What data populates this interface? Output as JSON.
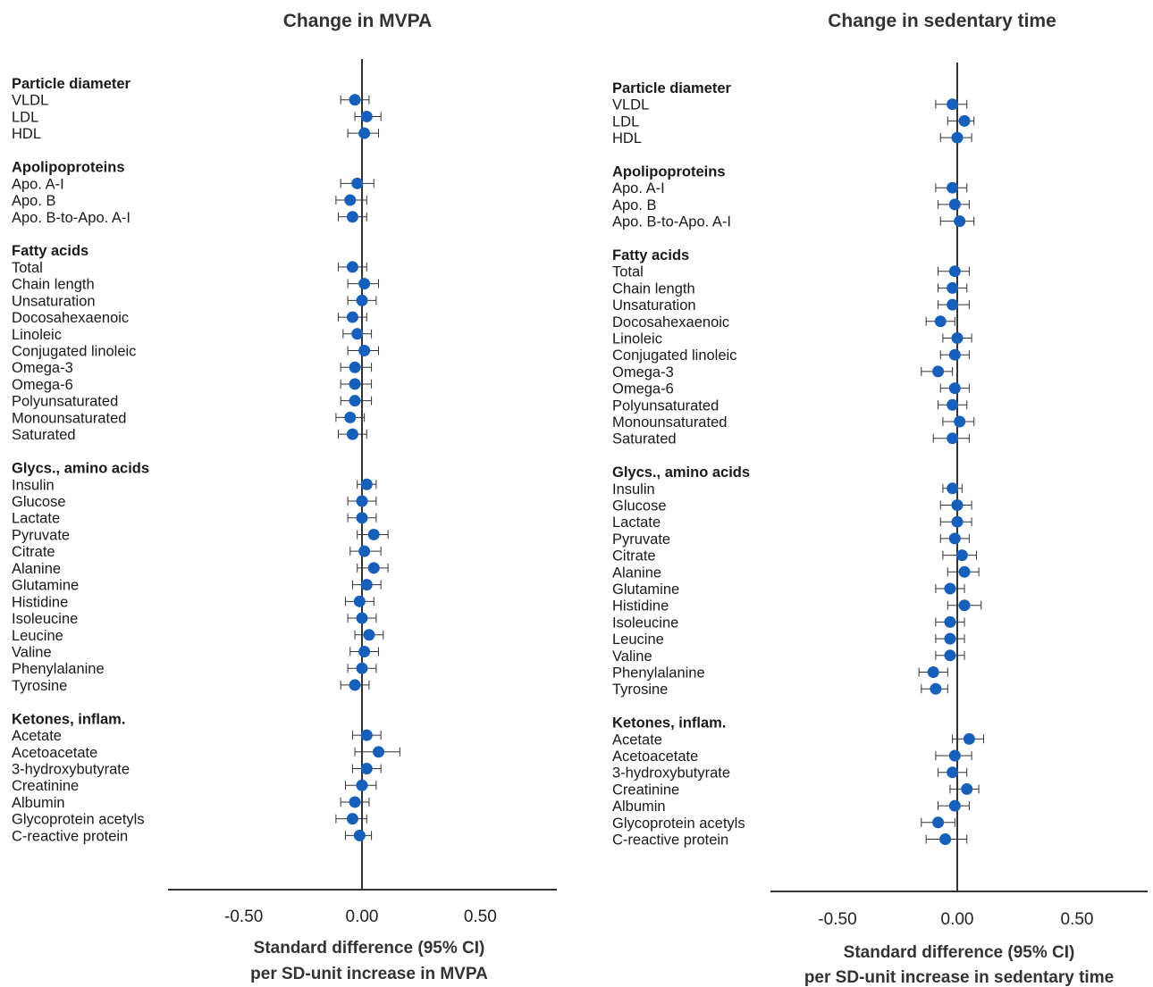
{
  "chart_data": [
    {
      "type": "forest",
      "title": "Change in MVPA",
      "xlabel": [
        "Standard difference (95% CI)",
        "per SD-unit increase in MVPA"
      ],
      "xlim": [
        -0.82,
        0.82
      ],
      "xticks": [
        -0.5,
        0.0,
        0.5
      ],
      "xtick_labels": [
        "-0.50",
        "0.00",
        "0.50"
      ],
      "reference_line": 0.0,
      "marker_color": "#1560BD",
      "groups": [
        {
          "label": "Particle diameter",
          "items": [
            {
              "label": "VLDL",
              "est": -0.03,
              "lo": -0.09,
              "hi": 0.03
            },
            {
              "label": "LDL",
              "est": 0.02,
              "lo": -0.03,
              "hi": 0.08
            },
            {
              "label": "HDL",
              "est": 0.01,
              "lo": -0.06,
              "hi": 0.07
            }
          ]
        },
        {
          "label": "Apolipoproteins",
          "items": [
            {
              "label": "Apo. A-I",
              "est": -0.02,
              "lo": -0.09,
              "hi": 0.05
            },
            {
              "label": "Apo. B",
              "est": -0.05,
              "lo": -0.11,
              "hi": 0.02
            },
            {
              "label": "Apo. B-to-Apo. A-I",
              "est": -0.04,
              "lo": -0.1,
              "hi": 0.02
            }
          ]
        },
        {
          "label": "Fatty acids",
          "items": [
            {
              "label": "Total",
              "est": -0.04,
              "lo": -0.1,
              "hi": 0.02
            },
            {
              "label": "Chain length",
              "est": 0.01,
              "lo": -0.06,
              "hi": 0.07
            },
            {
              "label": "Unsaturation",
              "est": 0.0,
              "lo": -0.06,
              "hi": 0.06
            },
            {
              "label": "Docosahexaenoic",
              "est": -0.04,
              "lo": -0.1,
              "hi": 0.02
            },
            {
              "label": "Linoleic",
              "est": -0.02,
              "lo": -0.08,
              "hi": 0.04
            },
            {
              "label": "Conjugated linoleic",
              "est": 0.01,
              "lo": -0.06,
              "hi": 0.07
            },
            {
              "label": "Omega-3",
              "est": -0.03,
              "lo": -0.09,
              "hi": 0.04
            },
            {
              "label": "Omega-6",
              "est": -0.03,
              "lo": -0.09,
              "hi": 0.04
            },
            {
              "label": "Polyunsaturated",
              "est": -0.03,
              "lo": -0.09,
              "hi": 0.04
            },
            {
              "label": "Monounsaturated",
              "est": -0.05,
              "lo": -0.11,
              "hi": 0.01
            },
            {
              "label": "Saturated",
              "est": -0.04,
              "lo": -0.1,
              "hi": 0.02
            }
          ]
        },
        {
          "label": "Glycs., amino acids",
          "items": [
            {
              "label": "Insulin",
              "est": 0.02,
              "lo": -0.02,
              "hi": 0.06
            },
            {
              "label": "Glucose",
              "est": 0.0,
              "lo": -0.06,
              "hi": 0.06
            },
            {
              "label": "Lactate",
              "est": 0.0,
              "lo": -0.06,
              "hi": 0.06
            },
            {
              "label": "Pyruvate",
              "est": 0.05,
              "lo": -0.02,
              "hi": 0.11
            },
            {
              "label": "Citrate",
              "est": 0.01,
              "lo": -0.05,
              "hi": 0.08
            },
            {
              "label": "Alanine",
              "est": 0.05,
              "lo": -0.02,
              "hi": 0.11
            },
            {
              "label": "Glutamine",
              "est": 0.02,
              "lo": -0.04,
              "hi": 0.08
            },
            {
              "label": "Histidine",
              "est": -0.01,
              "lo": -0.07,
              "hi": 0.05
            },
            {
              "label": "Isoleucine",
              "est": 0.0,
              "lo": -0.06,
              "hi": 0.06
            },
            {
              "label": "Leucine",
              "est": 0.03,
              "lo": -0.03,
              "hi": 0.09
            },
            {
              "label": "Valine",
              "est": 0.01,
              "lo": -0.05,
              "hi": 0.07
            },
            {
              "label": "Phenylalanine",
              "est": 0.0,
              "lo": -0.06,
              "hi": 0.06
            },
            {
              "label": "Tyrosine",
              "est": -0.03,
              "lo": -0.09,
              "hi": 0.03
            }
          ]
        },
        {
          "label": "Ketones, inflam.",
          "items": [
            {
              "label": "Acetate",
              "est": 0.02,
              "lo": -0.04,
              "hi": 0.08
            },
            {
              "label": "Acetoacetate",
              "est": 0.07,
              "lo": -0.03,
              "hi": 0.16
            },
            {
              "label": "3-hydroxybutyrate",
              "est": 0.02,
              "lo": -0.04,
              "hi": 0.08
            },
            {
              "label": "Creatinine",
              "est": 0.0,
              "lo": -0.07,
              "hi": 0.06
            },
            {
              "label": "Albumin",
              "est": -0.03,
              "lo": -0.09,
              "hi": 0.03
            },
            {
              "label": "Glycoprotein acetyls",
              "est": -0.04,
              "lo": -0.11,
              "hi": 0.02
            },
            {
              "label": "C-reactive protein",
              "est": -0.01,
              "lo": -0.07,
              "hi": 0.04
            }
          ]
        }
      ]
    },
    {
      "type": "forest",
      "title": "Change in sedentary time",
      "xlabel": [
        "Standard difference (95% CI)",
        "per SD-unit increase in sedentary time"
      ],
      "xlim": [
        -0.78,
        0.8
      ],
      "xticks": [
        -0.5,
        0.0,
        0.5
      ],
      "xtick_labels": [
        "-0.50",
        "0.00",
        "0.50"
      ],
      "reference_line": 0.0,
      "marker_color": "#1560BD",
      "groups": [
        {
          "label": "Particle diameter",
          "items": [
            {
              "label": "VLDL",
              "est": -0.02,
              "lo": -0.09,
              "hi": 0.04
            },
            {
              "label": "LDL",
              "est": 0.03,
              "lo": -0.04,
              "hi": 0.07
            },
            {
              "label": "HDL",
              "est": 0.0,
              "lo": -0.07,
              "hi": 0.06
            }
          ]
        },
        {
          "label": "Apolipoproteins",
          "items": [
            {
              "label": "Apo. A-I",
              "est": -0.02,
              "lo": -0.09,
              "hi": 0.04
            },
            {
              "label": "Apo. B",
              "est": -0.01,
              "lo": -0.08,
              "hi": 0.05
            },
            {
              "label": "Apo. B-to-Apo. A-I",
              "est": 0.01,
              "lo": -0.07,
              "hi": 0.07
            }
          ]
        },
        {
          "label": "Fatty acids",
          "items": [
            {
              "label": "Total",
              "est": -0.01,
              "lo": -0.08,
              "hi": 0.05
            },
            {
              "label": "Chain length",
              "est": -0.02,
              "lo": -0.08,
              "hi": 0.04
            },
            {
              "label": "Unsaturation",
              "est": -0.02,
              "lo": -0.08,
              "hi": 0.05
            },
            {
              "label": "Docosahexaenoic",
              "est": -0.07,
              "lo": -0.13,
              "hi": -0.01
            },
            {
              "label": "Linoleic",
              "est": 0.0,
              "lo": -0.06,
              "hi": 0.06
            },
            {
              "label": "Conjugated linoleic",
              "est": -0.01,
              "lo": -0.07,
              "hi": 0.05
            },
            {
              "label": "Omega-3",
              "est": -0.08,
              "lo": -0.15,
              "hi": -0.02
            },
            {
              "label": "Omega-6",
              "est": -0.01,
              "lo": -0.07,
              "hi": 0.05
            },
            {
              "label": "Polyunsaturated",
              "est": -0.02,
              "lo": -0.08,
              "hi": 0.04
            },
            {
              "label": "Monounsaturated",
              "est": 0.01,
              "lo": -0.06,
              "hi": 0.07
            },
            {
              "label": "Saturated",
              "est": -0.02,
              "lo": -0.1,
              "hi": 0.05
            }
          ]
        },
        {
          "label": "Glycs., amino acids",
          "items": [
            {
              "label": "Insulin",
              "est": -0.02,
              "lo": -0.06,
              "hi": 0.02
            },
            {
              "label": "Glucose",
              "est": 0.0,
              "lo": -0.07,
              "hi": 0.06
            },
            {
              "label": "Lactate",
              "est": 0.0,
              "lo": -0.07,
              "hi": 0.06
            },
            {
              "label": "Pyruvate",
              "est": -0.01,
              "lo": -0.07,
              "hi": 0.05
            },
            {
              "label": "Citrate",
              "est": 0.02,
              "lo": -0.06,
              "hi": 0.08
            },
            {
              "label": "Alanine",
              "est": 0.03,
              "lo": -0.04,
              "hi": 0.09
            },
            {
              "label": "Glutamine",
              "est": -0.03,
              "lo": -0.09,
              "hi": 0.03
            },
            {
              "label": "Histidine",
              "est": 0.03,
              "lo": -0.04,
              "hi": 0.1
            },
            {
              "label": "Isoleucine",
              "est": -0.03,
              "lo": -0.09,
              "hi": 0.03
            },
            {
              "label": "Leucine",
              "est": -0.03,
              "lo": -0.09,
              "hi": 0.03
            },
            {
              "label": "Valine",
              "est": -0.03,
              "lo": -0.09,
              "hi": 0.03
            },
            {
              "label": "Phenylalanine",
              "est": -0.1,
              "lo": -0.16,
              "hi": -0.04
            },
            {
              "label": "Tyrosine",
              "est": -0.09,
              "lo": -0.15,
              "hi": -0.04
            }
          ]
        },
        {
          "label": "Ketones, inflam.",
          "items": [
            {
              "label": "Acetate",
              "est": 0.05,
              "lo": -0.02,
              "hi": 0.11
            },
            {
              "label": "Acetoacetate",
              "est": -0.01,
              "lo": -0.09,
              "hi": 0.06
            },
            {
              "label": "3-hydroxybutyrate",
              "est": -0.02,
              "lo": -0.08,
              "hi": 0.04
            },
            {
              "label": "Creatinine",
              "est": 0.04,
              "lo": -0.03,
              "hi": 0.09
            },
            {
              "label": "Albumin",
              "est": -0.01,
              "lo": -0.08,
              "hi": 0.05
            },
            {
              "label": "Glycoprotein acetyls",
              "est": -0.08,
              "lo": -0.15,
              "hi": -0.01
            },
            {
              "label": "C-reactive protein",
              "est": -0.05,
              "lo": -0.13,
              "hi": 0.04
            }
          ]
        }
      ]
    }
  ]
}
